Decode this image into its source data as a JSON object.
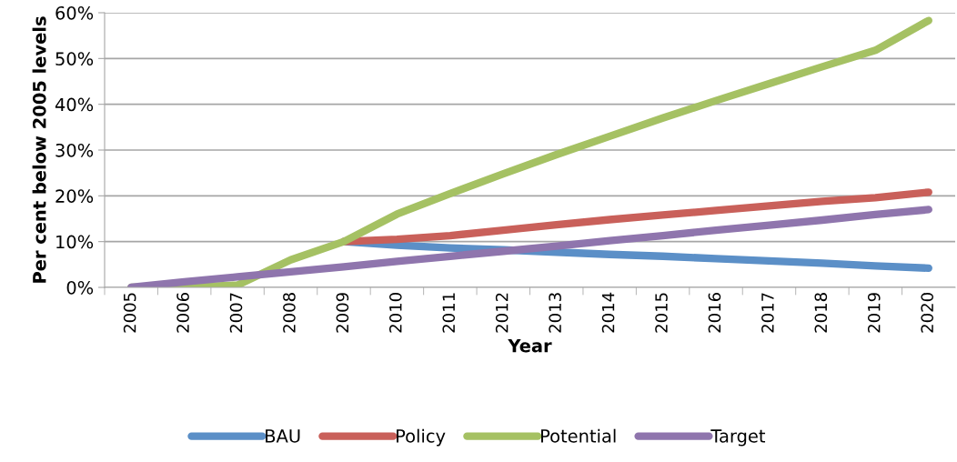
{
  "chart_data": {
    "type": "line",
    "xlabel": "Year",
    "ylabel": "Per cent below 2005 levels",
    "categories": [
      "2005",
      "2006",
      "2007",
      "2008",
      "2009",
      "2010",
      "2011",
      "2012",
      "2013",
      "2014",
      "2015",
      "2016",
      "2017",
      "2018",
      "2019",
      "2020"
    ],
    "series": [
      {
        "name": "BAU",
        "color": "#5b8fc7",
        "values": [
          null,
          null,
          null,
          null,
          10,
          9.2,
          8.6,
          8.2,
          7.7,
          7.2,
          6.8,
          6.3,
          5.8,
          5.3,
          4.7,
          4.2
        ]
      },
      {
        "name": "Policy",
        "color": "#c9605a",
        "values": [
          null,
          null,
          null,
          null,
          10,
          10.5,
          11.3,
          12.5,
          13.7,
          14.8,
          15.8,
          16.8,
          17.8,
          18.8,
          19.6,
          20.8
        ]
      },
      {
        "name": "Potential",
        "color": "#a5c163",
        "values": [
          0,
          0,
          0.5,
          6,
          10,
          16,
          20.5,
          24.8,
          29,
          33,
          37,
          40.8,
          44.5,
          48.2,
          51.8,
          58.3
        ]
      },
      {
        "name": "Target",
        "color": "#8f75ad",
        "values": [
          0,
          1.2,
          2.3,
          3.4,
          4.5,
          5.7,
          6.8,
          7.9,
          9,
          10.2,
          11.3,
          12.5,
          13.6,
          14.7,
          15.9,
          17
        ]
      }
    ],
    "ylim": [
      0,
      60
    ],
    "yticks": [
      {
        "value": 0,
        "label": "0%"
      },
      {
        "value": 10,
        "label": "10%"
      },
      {
        "value": 20,
        "label": "20%"
      },
      {
        "value": 30,
        "label": "30%"
      },
      {
        "value": 40,
        "label": "40%"
      },
      {
        "value": 50,
        "label": "50%"
      },
      {
        "value": 60,
        "label": "60%"
      }
    ],
    "grid": "y",
    "legend": "bottom",
    "marker": "none",
    "line_style": "solid"
  }
}
